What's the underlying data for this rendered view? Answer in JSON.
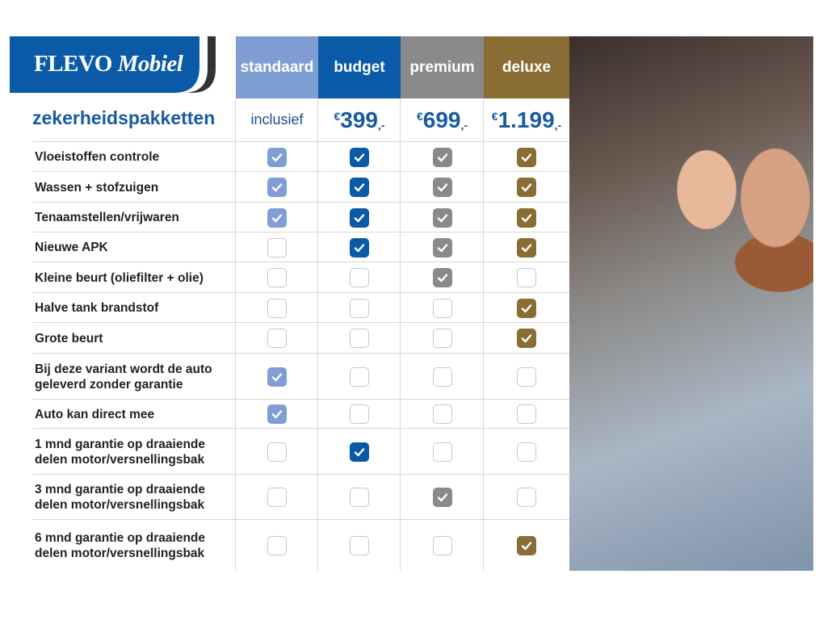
{
  "brand": {
    "name_part1": "FLEVO",
    "name_part2": "Mobiel"
  },
  "title": "zekerheidspakketten",
  "colors": {
    "standaard": "#7f9fd4",
    "budget": "#0a5aa8",
    "premium": "#8a8a8a",
    "deluxe": "#8a6d35",
    "heading": "#1a5aa0"
  },
  "packages": [
    {
      "name": "standaard",
      "price": "inclusief"
    },
    {
      "name": "budget",
      "currency": "€",
      "price": "399",
      "suffix": ",-"
    },
    {
      "name": "premium",
      "currency": "€",
      "price": "699",
      "suffix": ",-"
    },
    {
      "name": "deluxe",
      "currency": "€",
      "price": "1.199",
      "suffix": ",-"
    }
  ],
  "features": [
    {
      "label": "Vloeistoffen controle",
      "checks": [
        true,
        true,
        true,
        true
      ]
    },
    {
      "label": "Wassen + stofzuigen",
      "checks": [
        true,
        true,
        true,
        true
      ]
    },
    {
      "label": "Tenaamstellen/vrijwaren",
      "checks": [
        true,
        true,
        true,
        true
      ]
    },
    {
      "label": "Nieuwe APK",
      "checks": [
        false,
        true,
        true,
        true
      ]
    },
    {
      "label": "Kleine beurt (oliefilter + olie)",
      "checks": [
        false,
        false,
        true,
        false
      ]
    },
    {
      "label": "Halve tank brandstof",
      "checks": [
        false,
        false,
        false,
        true
      ]
    },
    {
      "label": "Grote beurt",
      "checks": [
        false,
        false,
        false,
        true
      ]
    },
    {
      "label": "Bij deze variant wordt de auto geleverd zonder garantie",
      "checks": [
        true,
        false,
        false,
        false
      ]
    },
    {
      "label": "Auto kan direct mee",
      "checks": [
        true,
        false,
        false,
        false
      ]
    },
    {
      "label": "1 mnd garantie op draaiende delen motor/versnellingsbak",
      "checks": [
        false,
        true,
        false,
        false
      ]
    },
    {
      "label": "3 mnd garantie op draaiende delen motor/versnellingsbak",
      "checks": [
        false,
        false,
        true,
        false
      ]
    },
    {
      "label": "6 mnd garantie op draaiende delen motor/versnellingsbak",
      "checks": [
        false,
        false,
        false,
        true
      ]
    }
  ]
}
